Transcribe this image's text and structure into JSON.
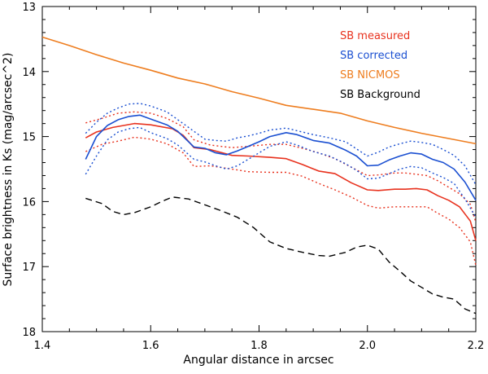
{
  "chart_data": {
    "type": "line",
    "title": "",
    "xlabel": "Angular distance in arcsec",
    "ylabel": "Surface brightness in Ks (mag/arcsec^2)",
    "xlim": [
      1.4,
      2.2
    ],
    "ylim": [
      18,
      13
    ],
    "y_inverted": true,
    "grid": false,
    "legend_position": "top-right",
    "xticks": [
      1.4,
      1.6,
      1.8,
      2.0,
      2.2
    ],
    "xtick_labels": [
      "1.4",
      "1.6",
      "1.8",
      "2.0",
      "2.2"
    ],
    "yticks": [
      13,
      14,
      15,
      16,
      17,
      18
    ],
    "ytick_labels": [
      "13",
      "14",
      "15",
      "16",
      "17",
      "18"
    ],
    "series": [
      {
        "name": "SB measured",
        "color": "#e8321e",
        "style": "solid",
        "legend": true,
        "x": [
          1.48,
          1.5,
          1.53,
          1.57,
          1.6,
          1.64,
          1.66,
          1.68,
          1.71,
          1.75,
          1.78,
          1.82,
          1.85,
          1.88,
          1.91,
          1.94,
          1.97,
          2.0,
          2.02,
          2.05,
          2.07,
          2.09,
          2.11,
          2.13,
          2.15,
          2.17,
          2.19,
          2.2
        ],
        "y": [
          15.02,
          14.93,
          14.86,
          14.8,
          14.82,
          14.88,
          14.98,
          15.17,
          15.2,
          15.29,
          15.3,
          15.32,
          15.34,
          15.43,
          15.53,
          15.57,
          15.71,
          15.82,
          15.83,
          15.81,
          15.81,
          15.8,
          15.82,
          15.91,
          15.98,
          16.08,
          16.3,
          16.6
        ]
      },
      {
        "name": "SB measured upper",
        "color": "#e8321e",
        "style": "dotted",
        "legend": false,
        "x": [
          1.48,
          1.51,
          1.54,
          1.57,
          1.6,
          1.63,
          1.66,
          1.68,
          1.71,
          1.75,
          1.78,
          1.82,
          1.85,
          1.88,
          1.91,
          1.94,
          1.97,
          2.0,
          2.02,
          2.05,
          2.07,
          2.09,
          2.11,
          2.13,
          2.15,
          2.17,
          2.19,
          2.2
        ],
        "y": [
          14.79,
          14.72,
          14.64,
          14.62,
          14.64,
          14.72,
          14.85,
          15.05,
          15.13,
          15.17,
          15.15,
          15.12,
          15.12,
          15.18,
          15.25,
          15.34,
          15.47,
          15.6,
          15.59,
          15.56,
          15.56,
          15.58,
          15.6,
          15.68,
          15.78,
          15.88,
          16.04,
          16.32
        ]
      },
      {
        "name": "SB measured lower",
        "color": "#e8321e",
        "style": "dotted",
        "legend": false,
        "x": [
          1.48,
          1.51,
          1.54,
          1.57,
          1.6,
          1.63,
          1.66,
          1.68,
          1.71,
          1.75,
          1.78,
          1.82,
          1.85,
          1.88,
          1.91,
          1.94,
          1.97,
          2.0,
          2.02,
          2.05,
          2.07,
          2.09,
          2.11,
          2.13,
          2.15,
          2.17,
          2.19,
          2.2
        ],
        "y": [
          15.23,
          15.12,
          15.07,
          15.01,
          15.04,
          15.11,
          15.25,
          15.46,
          15.45,
          15.5,
          15.54,
          15.55,
          15.55,
          15.61,
          15.72,
          15.82,
          15.93,
          16.06,
          16.1,
          16.08,
          16.08,
          16.08,
          16.08,
          16.18,
          16.27,
          16.4,
          16.62,
          16.98
        ]
      },
      {
        "name": "SB corrected",
        "color": "#1a4fd1",
        "style": "solid",
        "legend": true,
        "x": [
          1.48,
          1.5,
          1.52,
          1.54,
          1.56,
          1.58,
          1.6,
          1.63,
          1.65,
          1.68,
          1.7,
          1.72,
          1.74,
          1.76,
          1.78,
          1.8,
          1.82,
          1.85,
          1.87,
          1.9,
          1.93,
          1.96,
          1.98,
          2.0,
          2.02,
          2.04,
          2.06,
          2.08,
          2.1,
          2.12,
          2.14,
          2.16,
          2.18,
          2.2
        ],
        "y": [
          15.35,
          15.0,
          14.83,
          14.74,
          14.69,
          14.67,
          14.73,
          14.82,
          14.92,
          15.16,
          15.18,
          15.25,
          15.28,
          15.22,
          15.15,
          15.08,
          15.0,
          14.94,
          14.97,
          15.06,
          15.1,
          15.21,
          15.3,
          15.45,
          15.44,
          15.36,
          15.3,
          15.25,
          15.27,
          15.35,
          15.4,
          15.5,
          15.7,
          15.98
        ]
      },
      {
        "name": "SB corrected upper",
        "color": "#1a4fd1",
        "style": "dotted",
        "legend": false,
        "x": [
          1.48,
          1.5,
          1.52,
          1.54,
          1.56,
          1.58,
          1.6,
          1.63,
          1.65,
          1.68,
          1.7,
          1.72,
          1.74,
          1.76,
          1.78,
          1.8,
          1.82,
          1.85,
          1.87,
          1.9,
          1.93,
          1.96,
          1.98,
          2.0,
          2.02,
          2.04,
          2.06,
          2.08,
          2.1,
          2.12,
          2.14,
          2.16,
          2.18,
          2.2
        ],
        "y": [
          14.95,
          14.78,
          14.64,
          14.56,
          14.5,
          14.49,
          14.53,
          14.62,
          14.74,
          14.92,
          15.04,
          15.06,
          15.07,
          15.02,
          14.99,
          14.95,
          14.9,
          14.87,
          14.91,
          14.97,
          15.02,
          15.08,
          15.19,
          15.3,
          15.24,
          15.16,
          15.11,
          15.07,
          15.09,
          15.12,
          15.2,
          15.29,
          15.45,
          15.74
        ]
      },
      {
        "name": "SB corrected lower",
        "color": "#1a4fd1",
        "style": "dotted",
        "legend": false,
        "x": [
          1.48,
          1.5,
          1.52,
          1.54,
          1.56,
          1.58,
          1.6,
          1.63,
          1.65,
          1.68,
          1.7,
          1.72,
          1.74,
          1.76,
          1.78,
          1.8,
          1.82,
          1.85,
          1.87,
          1.9,
          1.93,
          1.96,
          1.98,
          2.0,
          2.02,
          2.04,
          2.06,
          2.08,
          2.1,
          2.12,
          2.14,
          2.16,
          2.18,
          2.2
        ],
        "y": [
          15.58,
          15.3,
          15.05,
          14.93,
          14.88,
          14.86,
          14.94,
          15.03,
          15.13,
          15.35,
          15.39,
          15.45,
          15.5,
          15.45,
          15.35,
          15.25,
          15.15,
          15.08,
          15.13,
          15.23,
          15.3,
          15.42,
          15.52,
          15.65,
          15.64,
          15.57,
          15.5,
          15.46,
          15.48,
          15.56,
          15.63,
          15.72,
          15.96,
          16.24
        ]
      },
      {
        "name": "SB NICMOS",
        "color": "#ee7d1f",
        "style": "solid",
        "legend": true,
        "x": [
          1.4,
          1.45,
          1.5,
          1.55,
          1.6,
          1.65,
          1.7,
          1.75,
          1.8,
          1.85,
          1.9,
          1.95,
          2.0,
          2.05,
          2.1,
          2.15,
          2.2
        ],
        "y": [
          13.47,
          13.6,
          13.74,
          13.87,
          13.98,
          14.1,
          14.19,
          14.31,
          14.41,
          14.52,
          14.58,
          14.64,
          14.76,
          14.86,
          14.95,
          15.03,
          15.11
        ]
      },
      {
        "name": "SB Background",
        "color": "#000000",
        "style": "dashed",
        "legend": true,
        "x": [
          1.48,
          1.51,
          1.53,
          1.55,
          1.57,
          1.6,
          1.62,
          1.64,
          1.67,
          1.7,
          1.73,
          1.76,
          1.79,
          1.82,
          1.85,
          1.88,
          1.91,
          1.93,
          1.96,
          1.98,
          2.0,
          2.02,
          2.04,
          2.06,
          2.08,
          2.1,
          2.12,
          2.14,
          2.16,
          2.18,
          2.2
        ],
        "y": [
          15.95,
          16.03,
          16.15,
          16.2,
          16.17,
          16.08,
          16.0,
          15.93,
          15.96,
          16.05,
          16.14,
          16.24,
          16.4,
          16.62,
          16.72,
          16.78,
          16.83,
          16.84,
          16.78,
          16.7,
          16.67,
          16.73,
          16.93,
          17.07,
          17.22,
          17.32,
          17.42,
          17.47,
          17.5,
          17.65,
          17.72
        ]
      }
    ]
  }
}
